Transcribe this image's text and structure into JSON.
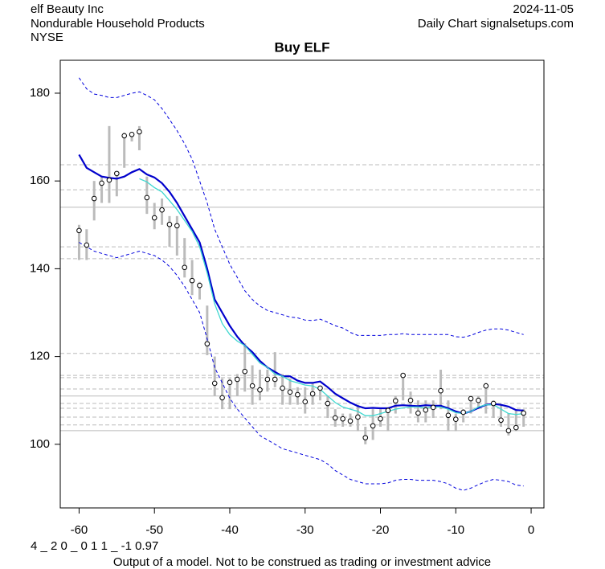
{
  "header": {
    "left": [
      "elf Beauty Inc",
      "Nondurable Household Products",
      "NYSE"
    ],
    "right": [
      "2024-11-05",
      "Daily Chart signalsetups.com"
    ]
  },
  "footer": {
    "code": "4 _ 2 0 _ 0 1 1 _ -1 0.97",
    "disclaimer": "Output of a model. Not to be construed as trading or investment advice"
  },
  "chart_data": {
    "type": "range",
    "title": "Buy ELF",
    "xlim": [
      -62.5,
      1.7
    ],
    "ylim": [
      85.5,
      187.5
    ],
    "xticks": [
      -60,
      -50,
      -40,
      -30,
      -20,
      -10,
      0
    ],
    "yticks": [
      100,
      120,
      140,
      160,
      180
    ],
    "x": [
      -60,
      -59,
      -58,
      -57,
      -56,
      -55,
      -54,
      -53,
      -52,
      -51,
      -50,
      -49,
      -48,
      -47,
      -46,
      -45,
      -44,
      -43,
      -42,
      -41,
      -40,
      -39,
      -38,
      -37,
      -36,
      -35,
      -34,
      -33,
      -32,
      -31,
      -30,
      -29,
      -28,
      -27,
      -26,
      -25,
      -24,
      -23,
      -22,
      -21,
      -20,
      -19,
      -18,
      -17,
      -16,
      -15,
      -14,
      -13,
      -12,
      -11,
      -10,
      -9,
      -8,
      -7,
      -6,
      -5,
      -4,
      -3,
      -2,
      -1
    ],
    "close": [
      148.7,
      145.4,
      156,
      159.5,
      160.2,
      161.7,
      170.3,
      170.6,
      171.2,
      156.2,
      151.6,
      153.4,
      150.1,
      149.8,
      140.3,
      137.3,
      136.2,
      122.9,
      113.9,
      110.6,
      114.1,
      114.8,
      116.6,
      113.3,
      112.4,
      114.8,
      114.8,
      112.8,
      111.9,
      111.3,
      109.7,
      111.5,
      112.8,
      109.3,
      106,
      105.8,
      105.3,
      106.2,
      101.5,
      104.2,
      105.8,
      107.7,
      109.9,
      115.7,
      110,
      107.1,
      107.8,
      108.4,
      112.2,
      106.6,
      105.7,
      107.3,
      110.4,
      110,
      113.3,
      109.3,
      105.5,
      103.1,
      103.8,
      107.1
    ],
    "high": [
      150,
      149,
      160,
      161,
      172.5,
      162,
      171,
      171,
      172.5,
      161,
      155,
      156,
      152,
      152,
      147,
      142,
      137,
      131.6,
      120,
      115,
      115,
      116,
      123,
      118,
      117,
      117,
      121,
      116,
      115,
      113,
      113,
      114,
      113,
      111,
      108,
      107,
      107,
      109,
      104,
      108,
      108,
      108,
      111,
      116,
      112,
      110,
      110,
      110,
      117,
      110,
      107,
      108,
      111,
      111,
      114,
      110,
      109,
      107,
      108,
      108
    ],
    "low": [
      142,
      142,
      151,
      155,
      155,
      156.5,
      163,
      169,
      167,
      152.5,
      149,
      150,
      145,
      143,
      138,
      134,
      133,
      120.3,
      111,
      108,
      108,
      111,
      112,
      109,
      110,
      112,
      113,
      109,
      109,
      109,
      107,
      109,
      110,
      106,
      104,
      104,
      104,
      103,
      100,
      101,
      104,
      103,
      107,
      110,
      107,
      105,
      105,
      106,
      108,
      103,
      103,
      105,
      107,
      108,
      107,
      106,
      104,
      102,
      103,
      104
    ],
    "bar_color": "#bbbbbb",
    "lines": [
      {
        "color": "#0000cc",
        "width": 2.2,
        "dashed": false,
        "values": [
          166,
          163,
          162,
          161,
          160.7,
          160.5,
          161,
          162,
          162.7,
          161.5,
          160.8,
          159.5,
          157.5,
          155,
          152,
          149,
          146,
          140,
          133,
          130,
          127,
          124.5,
          122.5,
          121,
          119,
          117.5,
          116.5,
          115.5,
          115.5,
          114.5,
          114,
          114,
          114.3,
          113,
          111.5,
          110.5,
          109.5,
          108.7,
          108.2,
          108.3,
          108.2,
          108.2,
          108.8,
          108.9,
          108.8,
          108.7,
          108.9,
          108.8,
          108.8,
          108.2,
          107.5,
          107,
          107.5,
          108.3,
          109,
          109.2,
          109,
          108.6,
          107.8,
          107.7
        ]
      },
      {
        "color": "#40d8d0",
        "width": 1.3,
        "dashed": false,
        "values": [
          null,
          null,
          null,
          null,
          null,
          null,
          null,
          null,
          160.5,
          159.8,
          158.5,
          157.5,
          155.5,
          153.5,
          151,
          148.5,
          145,
          139,
          132,
          127.5,
          125,
          123.5,
          122.5,
          120.5,
          118.5,
          117.5,
          116,
          115.5,
          114.5,
          114,
          113.5,
          113.3,
          112.5,
          111,
          109.5,
          108.5,
          108,
          107.5,
          106.5,
          106.5,
          107,
          107.5,
          108,
          108.3,
          108.5,
          108.5,
          108.3,
          108.5,
          108.5,
          108,
          107.2,
          107,
          107.5,
          108.5,
          109,
          109,
          108,
          107,
          106.8,
          107
        ]
      },
      {
        "color": "#0000dd",
        "width": 1,
        "dashed": true,
        "values": [
          183.5,
          181,
          179.8,
          179.5,
          179,
          179,
          179.5,
          180,
          180.3,
          179.5,
          178.5,
          176.5,
          174,
          171.5,
          168.5,
          165,
          160,
          155,
          149,
          145,
          141,
          138,
          135,
          133,
          131.5,
          130.5,
          130,
          129.5,
          129,
          128.8,
          128.3,
          128.2,
          128.5,
          127.8,
          127,
          126.5,
          125.5,
          124.8,
          124.8,
          124.8,
          124.8,
          125,
          125,
          125.2,
          125,
          125,
          125,
          125,
          125,
          125,
          124.5,
          124.4,
          124.8,
          125.5,
          126,
          126.3,
          126.3,
          126,
          125.5,
          125
        ]
      },
      {
        "color": "#0000dd",
        "width": 1,
        "dashed": true,
        "values": [
          146,
          145,
          144,
          143.5,
          143,
          142.5,
          143,
          143.5,
          144,
          143.5,
          143,
          142,
          140.5,
          138.5,
          136,
          133,
          130,
          124,
          117.5,
          114,
          110.5,
          108,
          106,
          104,
          102,
          101,
          100,
          99,
          98.5,
          98,
          97.5,
          97,
          96.5,
          95.5,
          94,
          93,
          92,
          91.5,
          91,
          91,
          91,
          91.2,
          91.8,
          92,
          92,
          91.8,
          91.8,
          91.8,
          91.5,
          91,
          90,
          89.5,
          90,
          90.8,
          91.5,
          92,
          91.8,
          91.5,
          90.7,
          90.5
        ]
      }
    ],
    "hlines": [
      {
        "value": 163.7,
        "dashed": true
      },
      {
        "value": 158,
        "dashed": true
      },
      {
        "value": 154,
        "dashed": false
      },
      {
        "value": 145,
        "dashed": true
      },
      {
        "value": 142.3,
        "dashed": true
      },
      {
        "value": 120.7,
        "dashed": true
      },
      {
        "value": 115.7,
        "dashed": true
      },
      {
        "value": 115.2,
        "dashed": true
      },
      {
        "value": 112.6,
        "dashed": true
      },
      {
        "value": 111,
        "dashed": false
      },
      {
        "value": 109.3,
        "dashed": true
      },
      {
        "value": 108.2,
        "dashed": true
      },
      {
        "value": 106.2,
        "dashed": true
      },
      {
        "value": 104.4,
        "dashed": true
      },
      {
        "value": 103.1,
        "dashed": false
      }
    ],
    "hline_color": "#bbbbbb"
  }
}
